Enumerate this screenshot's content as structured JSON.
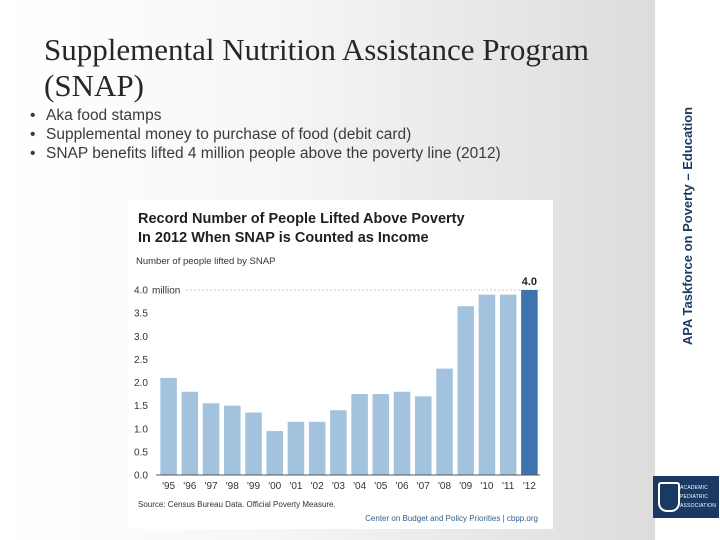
{
  "slide": {
    "title": "Supplemental Nutrition Assistance Program (SNAP)",
    "bullets": [
      "Aka food stamps",
      "Supplemental money to purchase of food (debit card)",
      "SNAP benefits lifted 4 million people above the poverty line (2012)"
    ],
    "side_label": "APA Taskforce on Poverty – Education",
    "logo_lines": [
      "ACADEMIC",
      "PEDIATRIC",
      "ASSOCIATION"
    ],
    "colors": {
      "title": "#262626",
      "side_label": "#1b3a63",
      "logo_bg": "#1b3a63"
    }
  },
  "chart_data": {
    "type": "bar",
    "title": "Record Number of People Lifted Above Poverty in 2012 When SNAP is Counted as Income",
    "title_lines": [
      "Record Number of People Lifted Above Poverty",
      "In 2012 When SNAP is Counted as Income"
    ],
    "subtitle": "Number of people lifted by SNAP",
    "y_unit_label": "million",
    "categories": [
      "'95",
      "'96",
      "'97",
      "'98",
      "'99",
      "'00",
      "'01",
      "'02",
      "'03",
      "'04",
      "'05",
      "'06",
      "'07",
      "'08",
      "'09",
      "'10",
      "'11",
      "'12"
    ],
    "values": [
      2.1,
      1.8,
      1.55,
      1.5,
      1.35,
      0.95,
      1.15,
      1.15,
      1.4,
      1.75,
      1.75,
      1.8,
      1.7,
      2.3,
      3.65,
      3.9,
      3.9,
      4.0
    ],
    "highlight_index": 17,
    "highlight_label": "4.0",
    "ylim": [
      0,
      4.0
    ],
    "yticks": [
      "0.0",
      "0.5",
      "1.0",
      "1.5",
      "2.0",
      "2.5",
      "3.0",
      "3.5",
      "4.0"
    ],
    "grid": false,
    "source": "Source: Census Bureau Data. Official Poverty Measure.",
    "credit": "Center on Budget and Policy Priorities | cbpp.org",
    "colors": {
      "bar": "#a3c2de",
      "bar_highlight": "#3f73ad",
      "title": "#1f1f1f",
      "axis": "#555555"
    }
  }
}
